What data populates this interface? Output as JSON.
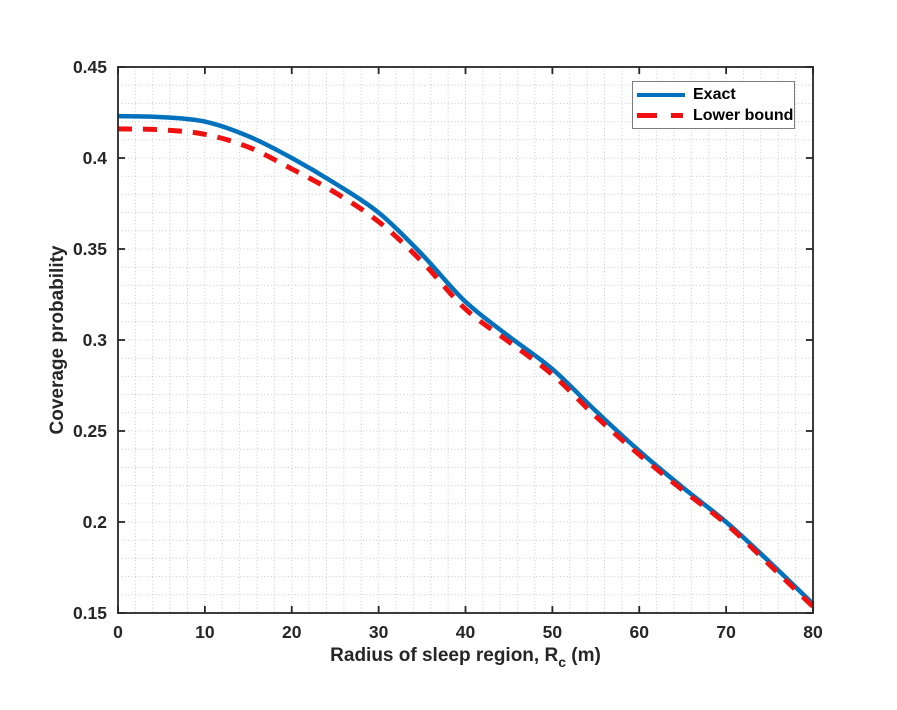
{
  "figure": {
    "background": "#ffffff",
    "axis_color": "#262626",
    "grid_color": "#c9c9c9",
    "tick_label_color": "#262626"
  },
  "chart_data": {
    "type": "line",
    "title": "",
    "xlabel": "Radius of sleep region, R_c (m)",
    "xlabel_main": "Radius of sleep region, R",
    "xlabel_sub": "c",
    "xlabel_suffix": " (m)",
    "ylabel": "Coverage probability",
    "xlim": [
      0,
      80
    ],
    "ylim": [
      0.15,
      0.45
    ],
    "x_ticks": [
      0,
      10,
      20,
      30,
      40,
      50,
      60,
      70,
      80
    ],
    "x_tick_labels": [
      "0",
      "10",
      "20",
      "30",
      "40",
      "50",
      "60",
      "70",
      "80"
    ],
    "y_ticks": [
      0.15,
      0.2,
      0.25,
      0.3,
      0.35,
      0.4,
      0.45
    ],
    "y_tick_labels": [
      "0.15",
      "0.2",
      "0.25",
      "0.3",
      "0.35",
      "0.4",
      "0.45"
    ],
    "grid": "minor-dotted",
    "x_minor_step": 2,
    "y_minor_step": 0.01,
    "legend_position": "top-right",
    "x": [
      0,
      5,
      10,
      15,
      20,
      25,
      30,
      35,
      40,
      45,
      50,
      55,
      60,
      65,
      70,
      75,
      80
    ],
    "series": [
      {
        "name": "Exact",
        "color": "#0072bd",
        "style": "solid",
        "line_width": 4.5,
        "values": [
          0.423,
          0.4225,
          0.42,
          0.412,
          0.4,
          0.386,
          0.37,
          0.347,
          0.321,
          0.302,
          0.284,
          0.261,
          0.239,
          0.219,
          0.2,
          0.178,
          0.155
        ]
      },
      {
        "name": "Lower bound",
        "color": "#f01010",
        "style": "dashed",
        "line_width": 5,
        "values": [
          0.416,
          0.4155,
          0.413,
          0.406,
          0.394,
          0.381,
          0.365,
          0.343,
          0.317,
          0.299,
          0.281,
          0.258,
          0.237,
          0.2175,
          0.199,
          0.1765,
          0.1535
        ]
      }
    ]
  }
}
